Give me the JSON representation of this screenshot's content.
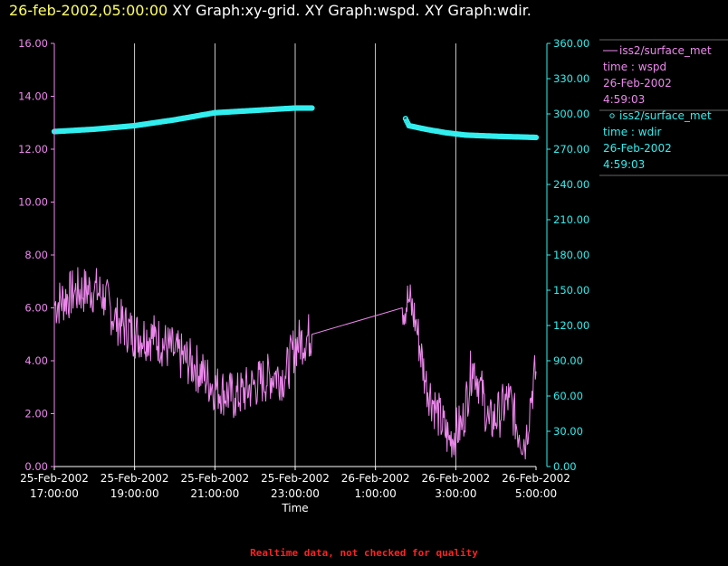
{
  "header": {
    "timestamp": "26-feb-2002,05:00:00",
    "titles": "XY Graph:xy-grid.  XY Graph:wspd.  XY Graph:wdir."
  },
  "footer": {
    "notice": "Realtime data, not checked for quality"
  },
  "colors": {
    "wspd": "#ee88ee",
    "wdir": "#33eeee",
    "grid": "#ffffff",
    "axis_text": "#ffffff"
  },
  "legend": [
    {
      "line1": "iss2/surface_met",
      "line2": "time : wspd",
      "line3": "26-Feb-2002",
      "line4": "4:59:03",
      "marker": "line"
    },
    {
      "line1": "iss2/surface_met",
      "line2": "time : wdir",
      "line3": "26-Feb-2002",
      "line4": "4:59:03",
      "marker": "circle"
    }
  ],
  "chart_data": {
    "type": "line",
    "xlabel": "Time",
    "x_range": [
      "25-Feb-2002 17:00:00",
      "26-Feb-2002 05:00:00"
    ],
    "x_ticks": [
      {
        "date": "25-Feb-2002",
        "time": "17:00:00"
      },
      {
        "date": "25-Feb-2002",
        "time": "19:00:00"
      },
      {
        "date": "25-Feb-2002",
        "time": "21:00:00"
      },
      {
        "date": "25-Feb-2002",
        "time": "23:00:00"
      },
      {
        "date": "26-Feb-2002",
        "time": "1:00:00"
      },
      {
        "date": "26-Feb-2002",
        "time": "3:00:00"
      },
      {
        "date": "26-Feb-2002",
        "time": "5:00:00"
      }
    ],
    "grid": "vertical",
    "y_left": {
      "ticks": [
        "0.00",
        "2.00",
        "4.00",
        "6.00",
        "8.00",
        "10.00",
        "12.00",
        "14.00",
        "16.00"
      ],
      "range": [
        0,
        16
      ]
    },
    "y_right": {
      "ticks": [
        "0.00",
        "30.00",
        "60.00",
        "90.00",
        "120.00",
        "150.00",
        "180.00",
        "210.00",
        "240.00",
        "270.00",
        "300.00",
        "330.00",
        "360.00"
      ],
      "range": [
        0,
        360
      ]
    },
    "series": [
      {
        "name": "wspd",
        "axis": "left",
        "noisy": true,
        "points": [
          [
            "25-Feb-2002 17:00:00",
            6.1
          ],
          [
            "25-Feb-2002 17:30:00",
            6.6
          ],
          [
            "25-Feb-2002 18:00:00",
            6.7
          ],
          [
            "25-Feb-2002 18:15:00",
            6.4
          ],
          [
            "25-Feb-2002 18:30:00",
            5.6
          ],
          [
            "25-Feb-2002 19:00:00",
            5.0
          ],
          [
            "25-Feb-2002 19:30:00",
            4.9
          ],
          [
            "25-Feb-2002 20:00:00",
            4.3
          ],
          [
            "25-Feb-2002 20:30:00",
            3.8
          ],
          [
            "25-Feb-2002 21:00:00",
            3.0
          ],
          [
            "25-Feb-2002 21:30:00",
            2.6
          ],
          [
            "25-Feb-2002 22:00:00",
            3.1
          ],
          [
            "25-Feb-2002 22:30:00",
            3.5
          ],
          [
            "25-Feb-2002 22:45:00",
            3.4
          ],
          [
            "25-Feb-2002 23:00:00",
            4.6
          ],
          [
            "25-Feb-2002 23:25:00",
            5.0
          ],
          [
            "26-Feb-2002 01:40:00",
            6.0
          ],
          [
            "26-Feb-2002 01:50:00",
            6.3
          ],
          [
            "26-Feb-2002 02:00:00",
            5.5
          ],
          [
            "26-Feb-2002 02:15:00",
            3.2
          ],
          [
            "26-Feb-2002 02:30:00",
            2.2
          ],
          [
            "26-Feb-2002 02:50:00",
            1.0
          ],
          [
            "26-Feb-2002 03:10:00",
            1.6
          ],
          [
            "26-Feb-2002 03:25:00",
            3.9
          ],
          [
            "26-Feb-2002 03:35:00",
            3.2
          ],
          [
            "26-Feb-2002 03:50:00",
            1.6
          ],
          [
            "26-Feb-2002 04:05:00",
            2.0
          ],
          [
            "26-Feb-2002 04:20:00",
            2.6
          ],
          [
            "26-Feb-2002 04:35:00",
            1.2
          ],
          [
            "26-Feb-2002 04:45:00",
            1.0
          ],
          [
            "26-Feb-2002 04:52:00",
            2.6
          ],
          [
            "26-Feb-2002 05:00:00",
            3.6
          ]
        ]
      },
      {
        "name": "wdir",
        "axis": "right",
        "marker": "circle",
        "segments": [
          [
            [
              "25-Feb-2002 17:00:00",
              285
            ],
            [
              "25-Feb-2002 18:00:00",
              287
            ],
            [
              "25-Feb-2002 19:00:00",
              290
            ],
            [
              "25-Feb-2002 20:00:00",
              295
            ],
            [
              "25-Feb-2002 21:00:00",
              301
            ],
            [
              "25-Feb-2002 22:00:00",
              303
            ],
            [
              "25-Feb-2002 23:00:00",
              305
            ],
            [
              "25-Feb-2002 23:25:00",
              305
            ]
          ],
          [
            [
              "26-Feb-2002 01:45:00",
              296
            ],
            [
              "26-Feb-2002 01:50:00",
              290
            ],
            [
              "26-Feb-2002 02:15:00",
              287
            ],
            [
              "26-Feb-2002 02:45:00",
              284
            ],
            [
              "26-Feb-2002 03:15:00",
              282
            ],
            [
              "26-Feb-2002 04:00:00",
              281
            ],
            [
              "26-Feb-2002 05:00:00",
              280
            ]
          ]
        ]
      }
    ]
  }
}
